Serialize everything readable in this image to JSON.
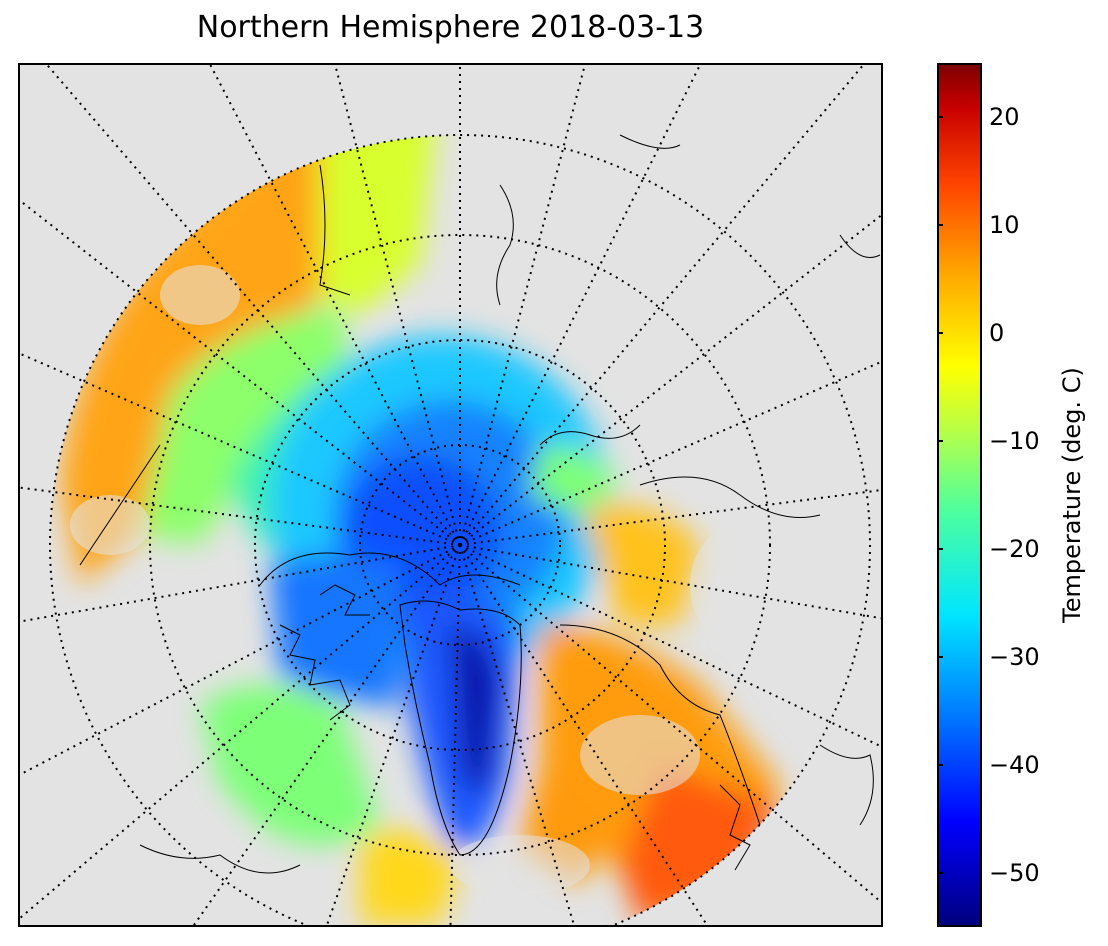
{
  "title": "Northern Hemisphere 2018-03-13",
  "colorbar": {
    "label": "Temperature (deg. C)",
    "range": [
      -55,
      25
    ],
    "colormap": "jet",
    "ticks": [
      "20",
      "10",
      "0",
      "−10",
      "−20",
      "−30",
      "−40",
      "−50"
    ],
    "tick_values": [
      20,
      10,
      0,
      -10,
      -20,
      -30,
      -40,
      -50
    ]
  },
  "map": {
    "projection": "north-polar-stereographic",
    "background_color": "#e3e3e3",
    "graticule": "dotted",
    "coastlines": true,
    "coldest_region": "Greenland interior",
    "warmest_region": "Northern Europe / Scandinavia"
  }
}
